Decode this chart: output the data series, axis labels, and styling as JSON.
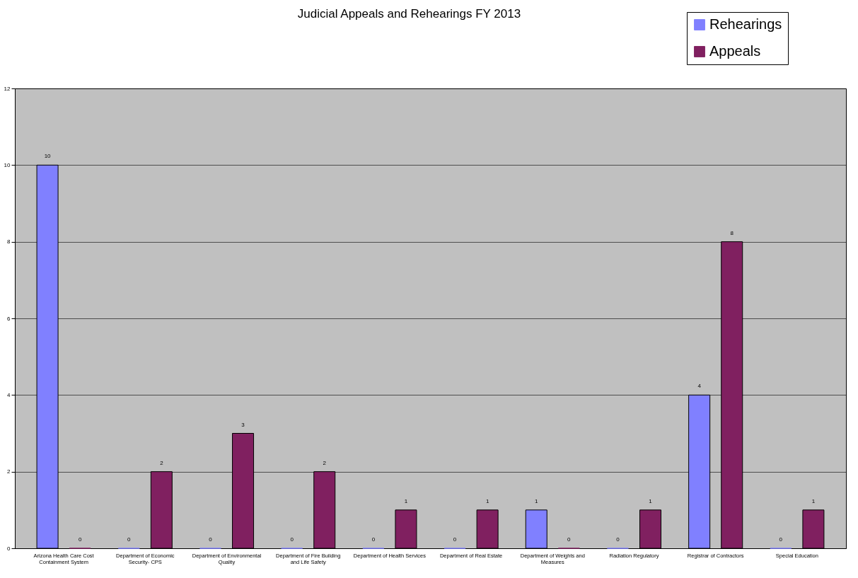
{
  "chart_data": {
    "type": "bar",
    "title": "Judicial Appeals and Rehearings FY 2013",
    "categories": [
      "Arizona Health Care Cost Containment System",
      "Department of Economic Security- CPS",
      "Department of Environmental Quality",
      "Department of Fire Building and Life Safety",
      "Department of Health Services",
      "Department of Real Estate",
      "Department of Weights and Measures",
      "Radiation Regulatory",
      "Registrar of Contractors",
      "Special Education"
    ],
    "series": [
      {
        "name": "Rehearings",
        "color": "#8080ff",
        "values": [
          10,
          0,
          0,
          0,
          0,
          0,
          1,
          0,
          4,
          0
        ]
      },
      {
        "name": "Appeals",
        "color": "#802060",
        "values": [
          0,
          2,
          3,
          2,
          1,
          1,
          0,
          1,
          8,
          1
        ]
      }
    ],
    "ylim": [
      0,
      12
    ],
    "yticks": [
      0,
      2,
      4,
      6,
      8,
      10,
      12
    ],
    "grid": "y",
    "data_labels": true,
    "legend": "top right"
  }
}
